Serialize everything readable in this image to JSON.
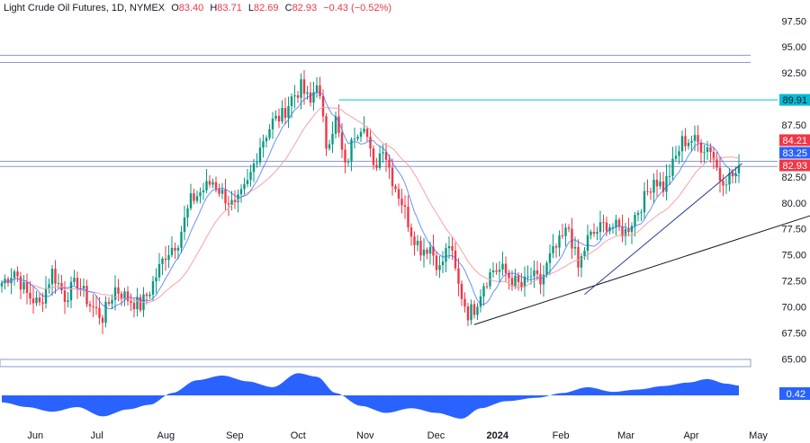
{
  "header": {
    "symbol": "Light Crude Oil Futures, 1D, NYMEX",
    "o_label": "O",
    "o_value": "83.40",
    "h_label": "H",
    "h_value": "83.71",
    "l_label": "L",
    "l_value": "82.69",
    "c_label": "C",
    "c_value": "82.93",
    "change": "−0.43 (−0.52%)"
  },
  "colors": {
    "up": "#089981",
    "down": "#f23645",
    "fast_ma": "#2962ff",
    "slow_ma": "#f7a1a8",
    "resistance": "#00bcd4",
    "level_line": "#8e9bc8",
    "oscillator": "#2962ff",
    "tag_red": "#f23645",
    "tag_blue": "#2962ff",
    "tag_cyan": "#00bcd4"
  },
  "chart_data": {
    "type": "candlestick",
    "price_axis": {
      "ticks": [
        "97.50",
        "95.00",
        "92.50",
        "90.00",
        "87.50",
        "85.00",
        "82.50",
        "80.00",
        "77.50",
        "75.00",
        "72.50",
        "70.00",
        "67.50",
        "65.00"
      ],
      "range": [
        64.0,
        98.3
      ]
    },
    "time_axis": {
      "ticks": [
        "Jun",
        "Jul",
        "Aug",
        "Sep",
        "Oct",
        "Nov",
        "Dec",
        "2024",
        "Feb",
        "Mar",
        "Apr",
        "May"
      ],
      "bold": [
        "2024"
      ]
    },
    "anchors": [
      [
        0,
        72.3
      ],
      [
        4,
        73.5
      ],
      [
        8,
        71.2
      ],
      [
        12,
        70.2
      ],
      [
        16,
        73.4
      ],
      [
        20,
        71.0
      ],
      [
        24,
        72.4
      ],
      [
        28,
        70.2
      ],
      [
        32,
        69.0
      ],
      [
        36,
        71.8
      ],
      [
        40,
        70.8
      ],
      [
        44,
        70.1
      ],
      [
        47,
        71.6
      ],
      [
        52,
        75.1
      ],
      [
        56,
        76.4
      ],
      [
        60,
        80.2
      ],
      [
        64,
        81.3
      ],
      [
        67,
        82.1
      ],
      [
        70,
        80.9
      ],
      [
        74,
        79.5
      ],
      [
        78,
        81.8
      ],
      [
        82,
        85.6
      ],
      [
        86,
        87.8
      ],
      [
        89,
        88.4
      ],
      [
        92,
        90.1
      ],
      [
        95,
        91.1
      ],
      [
        98,
        89.5
      ],
      [
        100,
        91.9
      ],
      [
        103,
        85.6
      ],
      [
        106,
        88.0
      ],
      [
        109,
        83.3
      ],
      [
        112,
        86.7
      ],
      [
        115,
        87.9
      ],
      [
        118,
        83.1
      ],
      [
        121,
        85.6
      ],
      [
        124,
        82.3
      ],
      [
        127,
        80.1
      ],
      [
        130,
        77.3
      ],
      [
        133,
        75.6
      ],
      [
        136,
        75.8
      ],
      [
        139,
        73.6
      ],
      [
        142,
        76.1
      ],
      [
        145,
        72.0
      ],
      [
        148,
        69.4
      ],
      [
        150,
        69.9
      ],
      [
        153,
        72.3
      ],
      [
        156,
        73.6
      ],
      [
        159,
        73.5
      ],
      [
        162,
        72.6
      ],
      [
        165,
        71.9
      ],
      [
        168,
        73.0
      ],
      [
        171,
        72.3
      ],
      [
        174,
        74.7
      ],
      [
        177,
        76.1
      ],
      [
        180,
        77.6
      ],
      [
        183,
        73.7
      ],
      [
        186,
        76.5
      ],
      [
        189,
        77.3
      ],
      [
        192,
        78.0
      ],
      [
        195,
        77.6
      ],
      [
        198,
        77.2
      ],
      [
        201,
        78.8
      ],
      [
        204,
        80.4
      ],
      [
        207,
        82.4
      ],
      [
        210,
        81.5
      ],
      [
        213,
        83.6
      ],
      [
        216,
        85.9
      ],
      [
        219,
        86.1
      ],
      [
        222,
        85.5
      ],
      [
        225,
        85.3
      ],
      [
        228,
        82.4
      ],
      [
        231,
        82.5
      ],
      [
        234,
        82.9
      ]
    ],
    "candle_count": 235,
    "levels": {
      "top_range": [
        94.2,
        93.5
      ],
      "resistance": 89.91,
      "support_zone": [
        84.0,
        83.5
      ]
    },
    "trendlines": [
      {
        "from": [
          150,
          68.3
        ],
        "to": [
          259,
          79.0
        ]
      },
      {
        "from": [
          185,
          71.2
        ],
        "to": [
          235,
          83.8
        ]
      }
    ],
    "price_tags": [
      {
        "value": "89.91",
        "price": 89.91,
        "color_key": "tag_cyan",
        "dark": true
      },
      {
        "value": "84.21",
        "price": 84.21,
        "color_key": "tag_red"
      },
      {
        "value": "83.25",
        "price": 83.25,
        "color_key": "tag_blue"
      },
      {
        "value": "82.93",
        "price": 82.93,
        "color_key": "tag_red"
      }
    ],
    "oscillator": {
      "value": "0.42",
      "anchors": [
        [
          0,
          -0.3
        ],
        [
          8,
          -0.5
        ],
        [
          16,
          -0.7
        ],
        [
          24,
          -0.5
        ],
        [
          32,
          -0.9
        ],
        [
          40,
          -0.6
        ],
        [
          47,
          -0.4
        ],
        [
          54,
          0.1
        ],
        [
          62,
          0.65
        ],
        [
          70,
          0.85
        ],
        [
          78,
          0.6
        ],
        [
          86,
          0.35
        ],
        [
          94,
          0.95
        ],
        [
          100,
          0.8
        ],
        [
          106,
          0.1
        ],
        [
          114,
          -0.45
        ],
        [
          122,
          -0.75
        ],
        [
          130,
          -0.55
        ],
        [
          138,
          -0.75
        ],
        [
          146,
          -1.0
        ],
        [
          152,
          -0.55
        ],
        [
          160,
          -0.25
        ],
        [
          170,
          -0.1
        ],
        [
          178,
          0.1
        ],
        [
          186,
          0.35
        ],
        [
          194,
          0.15
        ],
        [
          202,
          0.25
        ],
        [
          210,
          0.4
        ],
        [
          218,
          0.55
        ],
        [
          224,
          0.7
        ],
        [
          230,
          0.5
        ],
        [
          234,
          0.42
        ]
      ]
    }
  }
}
